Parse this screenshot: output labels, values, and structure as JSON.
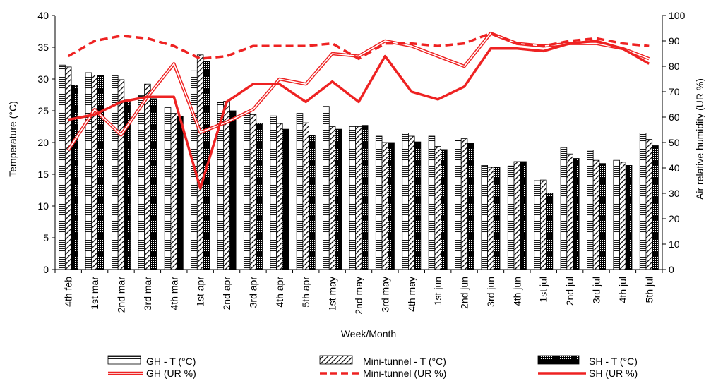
{
  "chart_data": {
    "type": "bar",
    "categories": [
      "4th feb",
      "1st mar",
      "2nd mar",
      "3rd mar",
      "4th mar",
      "1st apr",
      "2nd apr",
      "3rd apr",
      "4th apr",
      "5th apr",
      "1st may",
      "2nd may",
      "3rd may",
      "4th may",
      "1st jun",
      "2nd jun",
      "3rd jun",
      "4th jun",
      "1st jul",
      "2nd jul",
      "3rd jul",
      "4th jul",
      "5th jul"
    ],
    "xlabel": "Week/Month",
    "ylabel": "Temperature  (°C)",
    "y2label": "Air relative humidity (UR %)",
    "ylim": [
      0,
      40
    ],
    "y2lim": [
      0,
      100
    ],
    "yticks": [
      "0",
      "5",
      "10",
      "15",
      "20",
      "25",
      "30",
      "35",
      "40"
    ],
    "y2ticks": [
      "0",
      "10",
      "20",
      "30",
      "40",
      "50",
      "60",
      "70",
      "80",
      "90",
      "100"
    ],
    "bar_series": [
      {
        "name": "GH -  T (°C)",
        "pattern": "horizontal-lines",
        "values": [
          32.2,
          31.0,
          30.5,
          27.4,
          25.5,
          31.3,
          26.3,
          24.8,
          24.2,
          24.6,
          25.7,
          22.5,
          21.0,
          21.5,
          21.0,
          20.3,
          16.4,
          16.3,
          14.0,
          19.2,
          18.8,
          17.2,
          21.5
        ]
      },
      {
        "name": "Mini-tunnel - T (°C)",
        "pattern": "diagonal-lines",
        "values": [
          31.9,
          30.6,
          29.9,
          29.2,
          24.6,
          33.8,
          26.5,
          24.4,
          23.0,
          23.1,
          22.5,
          22.5,
          20.0,
          21.0,
          19.4,
          20.6,
          16.1,
          17.0,
          14.1,
          18.2,
          17.2,
          16.9,
          20.5
        ]
      },
      {
        "name": "SH - T (°C)",
        "pattern": "dots",
        "values": [
          29.0,
          30.6,
          26.7,
          26.9,
          24.1,
          32.8,
          25.0,
          23.0,
          22.1,
          21.1,
          22.1,
          22.7,
          20.0,
          20.1,
          18.9,
          19.9,
          16.1,
          17.0,
          12.0,
          17.5,
          16.7,
          16.4,
          19.5
        ]
      }
    ],
    "line_series": [
      {
        "name": "GH (UR %)",
        "style": "double",
        "color": "#ee2222",
        "values": [
          47,
          63,
          53,
          68,
          81,
          54,
          58,
          63,
          75,
          73,
          85,
          84,
          90,
          88,
          84,
          80,
          93,
          89,
          88,
          89,
          89,
          87,
          83
        ]
      },
      {
        "name": "Mini-tunnel (UR %)",
        "style": "dashed",
        "color": "#ee2222",
        "values": [
          84,
          90,
          92,
          91,
          88,
          83,
          84,
          88,
          88,
          88,
          89,
          83,
          89,
          89,
          88,
          89,
          93,
          89,
          88,
          90,
          91,
          89,
          88
        ]
      },
      {
        "name": "SH (UR %)",
        "style": "solid",
        "color": "#ee2222",
        "values": [
          59,
          61,
          66,
          68,
          68,
          32,
          66,
          73,
          73,
          66,
          74,
          66,
          84,
          70,
          67,
          72,
          87,
          87,
          86,
          89,
          90,
          87,
          81
        ]
      }
    ],
    "legend_position": "bottom"
  }
}
